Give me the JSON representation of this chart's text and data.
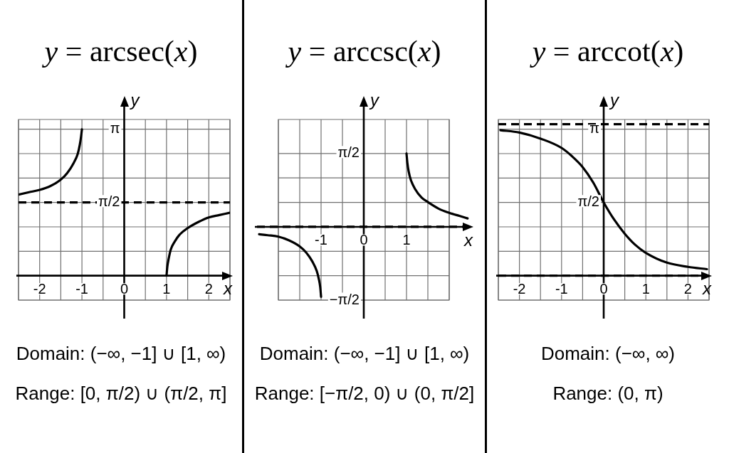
{
  "chart_data": [
    {
      "type": "line",
      "title": "y = arcsec(x)",
      "xlabel": "x",
      "ylabel": "y",
      "xlim": [
        -2.5,
        2.5
      ],
      "ylim": [
        -0.5236,
        3.35
      ],
      "xticks": [
        {
          "value": -2.5,
          "label": null
        },
        -2,
        {
          "value": -1.5,
          "label": null
        },
        -1,
        {
          "value": -0.5,
          "label": null
        },
        0,
        {
          "value": 0.5,
          "label": null
        },
        1,
        {
          "value": 1.5,
          "label": null
        },
        2,
        {
          "value": 2.5,
          "label": null
        }
      ],
      "yticks": [
        {
          "value": -0.5236,
          "label": null
        },
        {
          "value": 0,
          "label": null
        },
        {
          "value": 0.5236,
          "label": null
        },
        {
          "value": 1.0472,
          "label": null
        },
        {
          "value": 1.5708,
          "label": "π/2"
        },
        {
          "value": 2.0944,
          "label": null
        },
        {
          "value": 2.618,
          "label": null
        },
        {
          "value": 3.1416,
          "label": "π"
        }
      ],
      "grid": true,
      "marker": "none",
      "line_style": "solid",
      "series": [
        {
          "color": "#000000",
          "x": [
            -2.5,
            -2.25,
            -2,
            -1.75,
            -1.5,
            -1.35,
            -1.2,
            -1.1,
            -1.05,
            -1.02,
            -1
          ],
          "values": [
            1.74,
            1.79,
            1.84,
            1.92,
            2.06,
            2.2,
            2.41,
            2.61,
            2.81,
            2.99,
            3.14
          ]
        },
        {
          "color": "#000000",
          "x": [
            1,
            1.02,
            1.05,
            1.1,
            1.2,
            1.3,
            1.5,
            1.75,
            2,
            2.25,
            2.5
          ],
          "values": [
            0,
            0.2,
            0.36,
            0.56,
            0.74,
            0.87,
            1.02,
            1.15,
            1.25,
            1.3,
            1.35
          ]
        }
      ],
      "ref_lines": [
        {
          "axis": "y",
          "value": 1.5708,
          "color": "#000000",
          "line_style": "dashed"
        }
      ],
      "annotations": [
        "Domain: (−∞, −1] ∪ [1, ∞)",
        "Range: [0, π/2) ∪ (π/2, π]"
      ]
    },
    {
      "type": "line",
      "title": "y = arccsc(x)",
      "xlabel": "x",
      "ylabel": "y",
      "xlim": [
        -2.5,
        2.5
      ],
      "ylim": [
        -1.5708,
        2.3
      ],
      "xticks": [
        {
          "value": -2,
          "label": null
        },
        {
          "value": -1.5,
          "label": null
        },
        -1,
        {
          "value": -0.5,
          "label": null
        },
        0,
        {
          "value": 0.5,
          "label": null
        },
        1,
        {
          "value": 1.5,
          "label": null
        },
        {
          "value": 2,
          "label": null
        }
      ],
      "yticks": [
        {
          "value": -1.5708,
          "label": "−π/2"
        },
        {
          "value": -1.0472,
          "label": null
        },
        {
          "value": -0.5236,
          "label": null
        },
        {
          "value": 0,
          "label": null
        },
        {
          "value": 0.5236,
          "label": null
        },
        {
          "value": 1.0472,
          "label": null
        },
        {
          "value": 1.5708,
          "label": "π/2"
        }
      ],
      "grid": true,
      "marker": "none",
      "line_style": "solid",
      "series": [
        {
          "color": "#000000",
          "x": [
            -2.45,
            -2.25,
            -2,
            -1.75,
            -1.5,
            -1.35,
            -1.2,
            -1.1,
            -1.05,
            -1.02,
            -1
          ],
          "values": [
            -0.16,
            -0.18,
            -0.21,
            -0.29,
            -0.42,
            -0.55,
            -0.75,
            -0.95,
            -1.13,
            -1.29,
            -1.5
          ]
        },
        {
          "color": "#000000",
          "x": [
            1,
            1.02,
            1.05,
            1.1,
            1.2,
            1.35,
            1.5,
            1.75,
            2,
            2.25,
            2.43
          ],
          "values": [
            1.57,
            1.37,
            1.19,
            1.01,
            0.81,
            0.63,
            0.53,
            0.39,
            0.3,
            0.23,
            0.18
          ]
        }
      ],
      "ref_lines": [
        {
          "axis": "y",
          "value": 0,
          "color": "#000000",
          "line_style": "dashed"
        }
      ],
      "annotations": [
        "Domain: (−∞, −1] ∪ [1, ∞)",
        "Range: [−π/2, 0) ∪ (0, π/2]"
      ]
    },
    {
      "type": "line",
      "title": "y = arccot(x)",
      "xlabel": "x",
      "ylabel": "y",
      "xlim": [
        -2.5,
        2.5
      ],
      "ylim": [
        -0.5236,
        3.35
      ],
      "xticks": [
        {
          "value": -2.5,
          "label": null
        },
        -2,
        {
          "value": -1.5,
          "label": null
        },
        -1,
        {
          "value": -0.5,
          "label": null
        },
        0,
        {
          "value": 0.5,
          "label": null
        },
        1,
        {
          "value": 1.5,
          "label": null
        },
        2,
        {
          "value": 2.5,
          "label": null
        }
      ],
      "yticks": [
        {
          "value": -0.5236,
          "label": null
        },
        {
          "value": 0,
          "label": null
        },
        {
          "value": 0.5236,
          "label": null
        },
        {
          "value": 1.0472,
          "label": null
        },
        {
          "value": 1.5708,
          "label": "π/2"
        },
        {
          "value": 2.0944,
          "label": null
        },
        {
          "value": 2.618,
          "label": null
        },
        {
          "value": 3.1416,
          "label": "π"
        }
      ],
      "grid": true,
      "marker": "none",
      "line_style": "solid",
      "series": [
        {
          "color": "#000000",
          "x": [
            -2.45,
            -2,
            -1.5,
            -1,
            -0.75,
            -0.5,
            -0.25,
            0,
            0.25,
            0.5,
            0.75,
            1,
            1.5,
            2,
            2.45
          ],
          "values": [
            3.12,
            3.07,
            2.94,
            2.74,
            2.56,
            2.33,
            2,
            1.57,
            1.2,
            0.9,
            0.66,
            0.49,
            0.28,
            0.19,
            0.14
          ]
        }
      ],
      "ref_lines": [
        {
          "axis": "y",
          "value": 3.25,
          "color": "#000000",
          "line_style": "dashed"
        },
        {
          "axis": "y",
          "value": 0,
          "color": "#000000",
          "line_style": "dashed"
        }
      ],
      "annotations": [
        "Domain: (−∞, ∞)",
        "Range: (0, π)"
      ]
    }
  ]
}
